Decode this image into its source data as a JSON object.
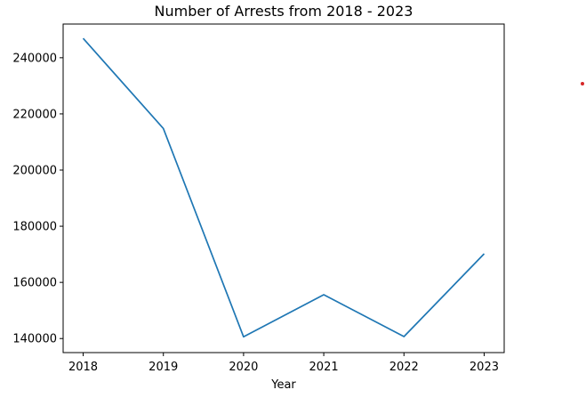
{
  "chart_data": {
    "type": "line",
    "title": "Number of Arrests from 2018 - 2023",
    "xlabel": "Year",
    "ylabel": "",
    "x": [
      2018,
      2019,
      2020,
      2021,
      2022,
      2023
    ],
    "x_tick_labels": [
      "2018",
      "2019",
      "2020",
      "2021",
      "2022",
      "2023"
    ],
    "series": [
      {
        "values": [
          246900,
          214800,
          140600,
          155600,
          140700,
          170200
        ],
        "color": "#1f77b4"
      }
    ],
    "y_ticks": [
      140000,
      160000,
      180000,
      200000,
      220000,
      240000
    ],
    "y_tick_labels": [
      "140000",
      "160000",
      "180000",
      "200000",
      "220000",
      "240000"
    ],
    "xlim": [
      2017.75,
      2023.25
    ],
    "ylim": [
      135000,
      252000
    ],
    "grid": false,
    "marker_color": "#d62728"
  }
}
